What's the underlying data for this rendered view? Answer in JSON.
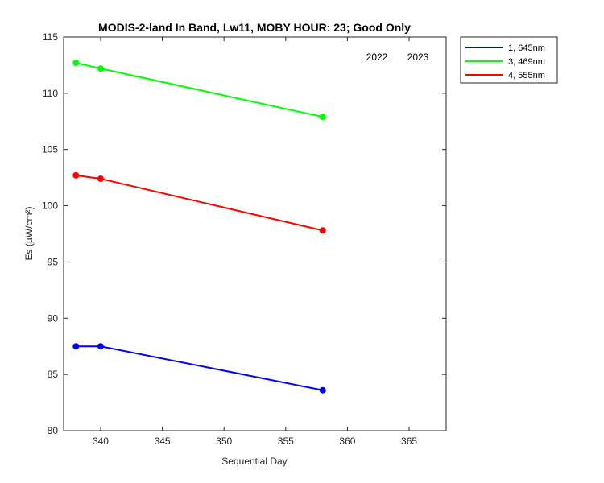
{
  "chart_data": {
    "type": "line",
    "title": "MODIS-2-land In Band,  Lw11, MOBY HOUR: 23;  Good Only",
    "xlabel": "Sequential Day",
    "ylabel": "Es (µW/cm²)",
    "xlim": [
      337,
      368
    ],
    "ylim": [
      80,
      115
    ],
    "xticks": [
      340,
      345,
      350,
      355,
      360,
      365
    ],
    "yticks": [
      80,
      85,
      90,
      95,
      100,
      105,
      110,
      115
    ],
    "grid": false,
    "legend_position": "outside-top-right",
    "annotations": [
      "2022",
      "2023"
    ],
    "series": [
      {
        "name": "1, 645nm",
        "color": "#0000ff",
        "x": [
          338,
          340,
          358
        ],
        "y": [
          87.5,
          87.5,
          83.6
        ]
      },
      {
        "name": "3, 469nm",
        "color": "#00ff00",
        "x": [
          338,
          340,
          358
        ],
        "y": [
          112.7,
          112.2,
          107.9
        ]
      },
      {
        "name": "4, 555nm",
        "color": "#ff0000",
        "x": [
          338,
          340,
          358
        ],
        "y": [
          102.7,
          102.4,
          97.8
        ]
      }
    ]
  }
}
